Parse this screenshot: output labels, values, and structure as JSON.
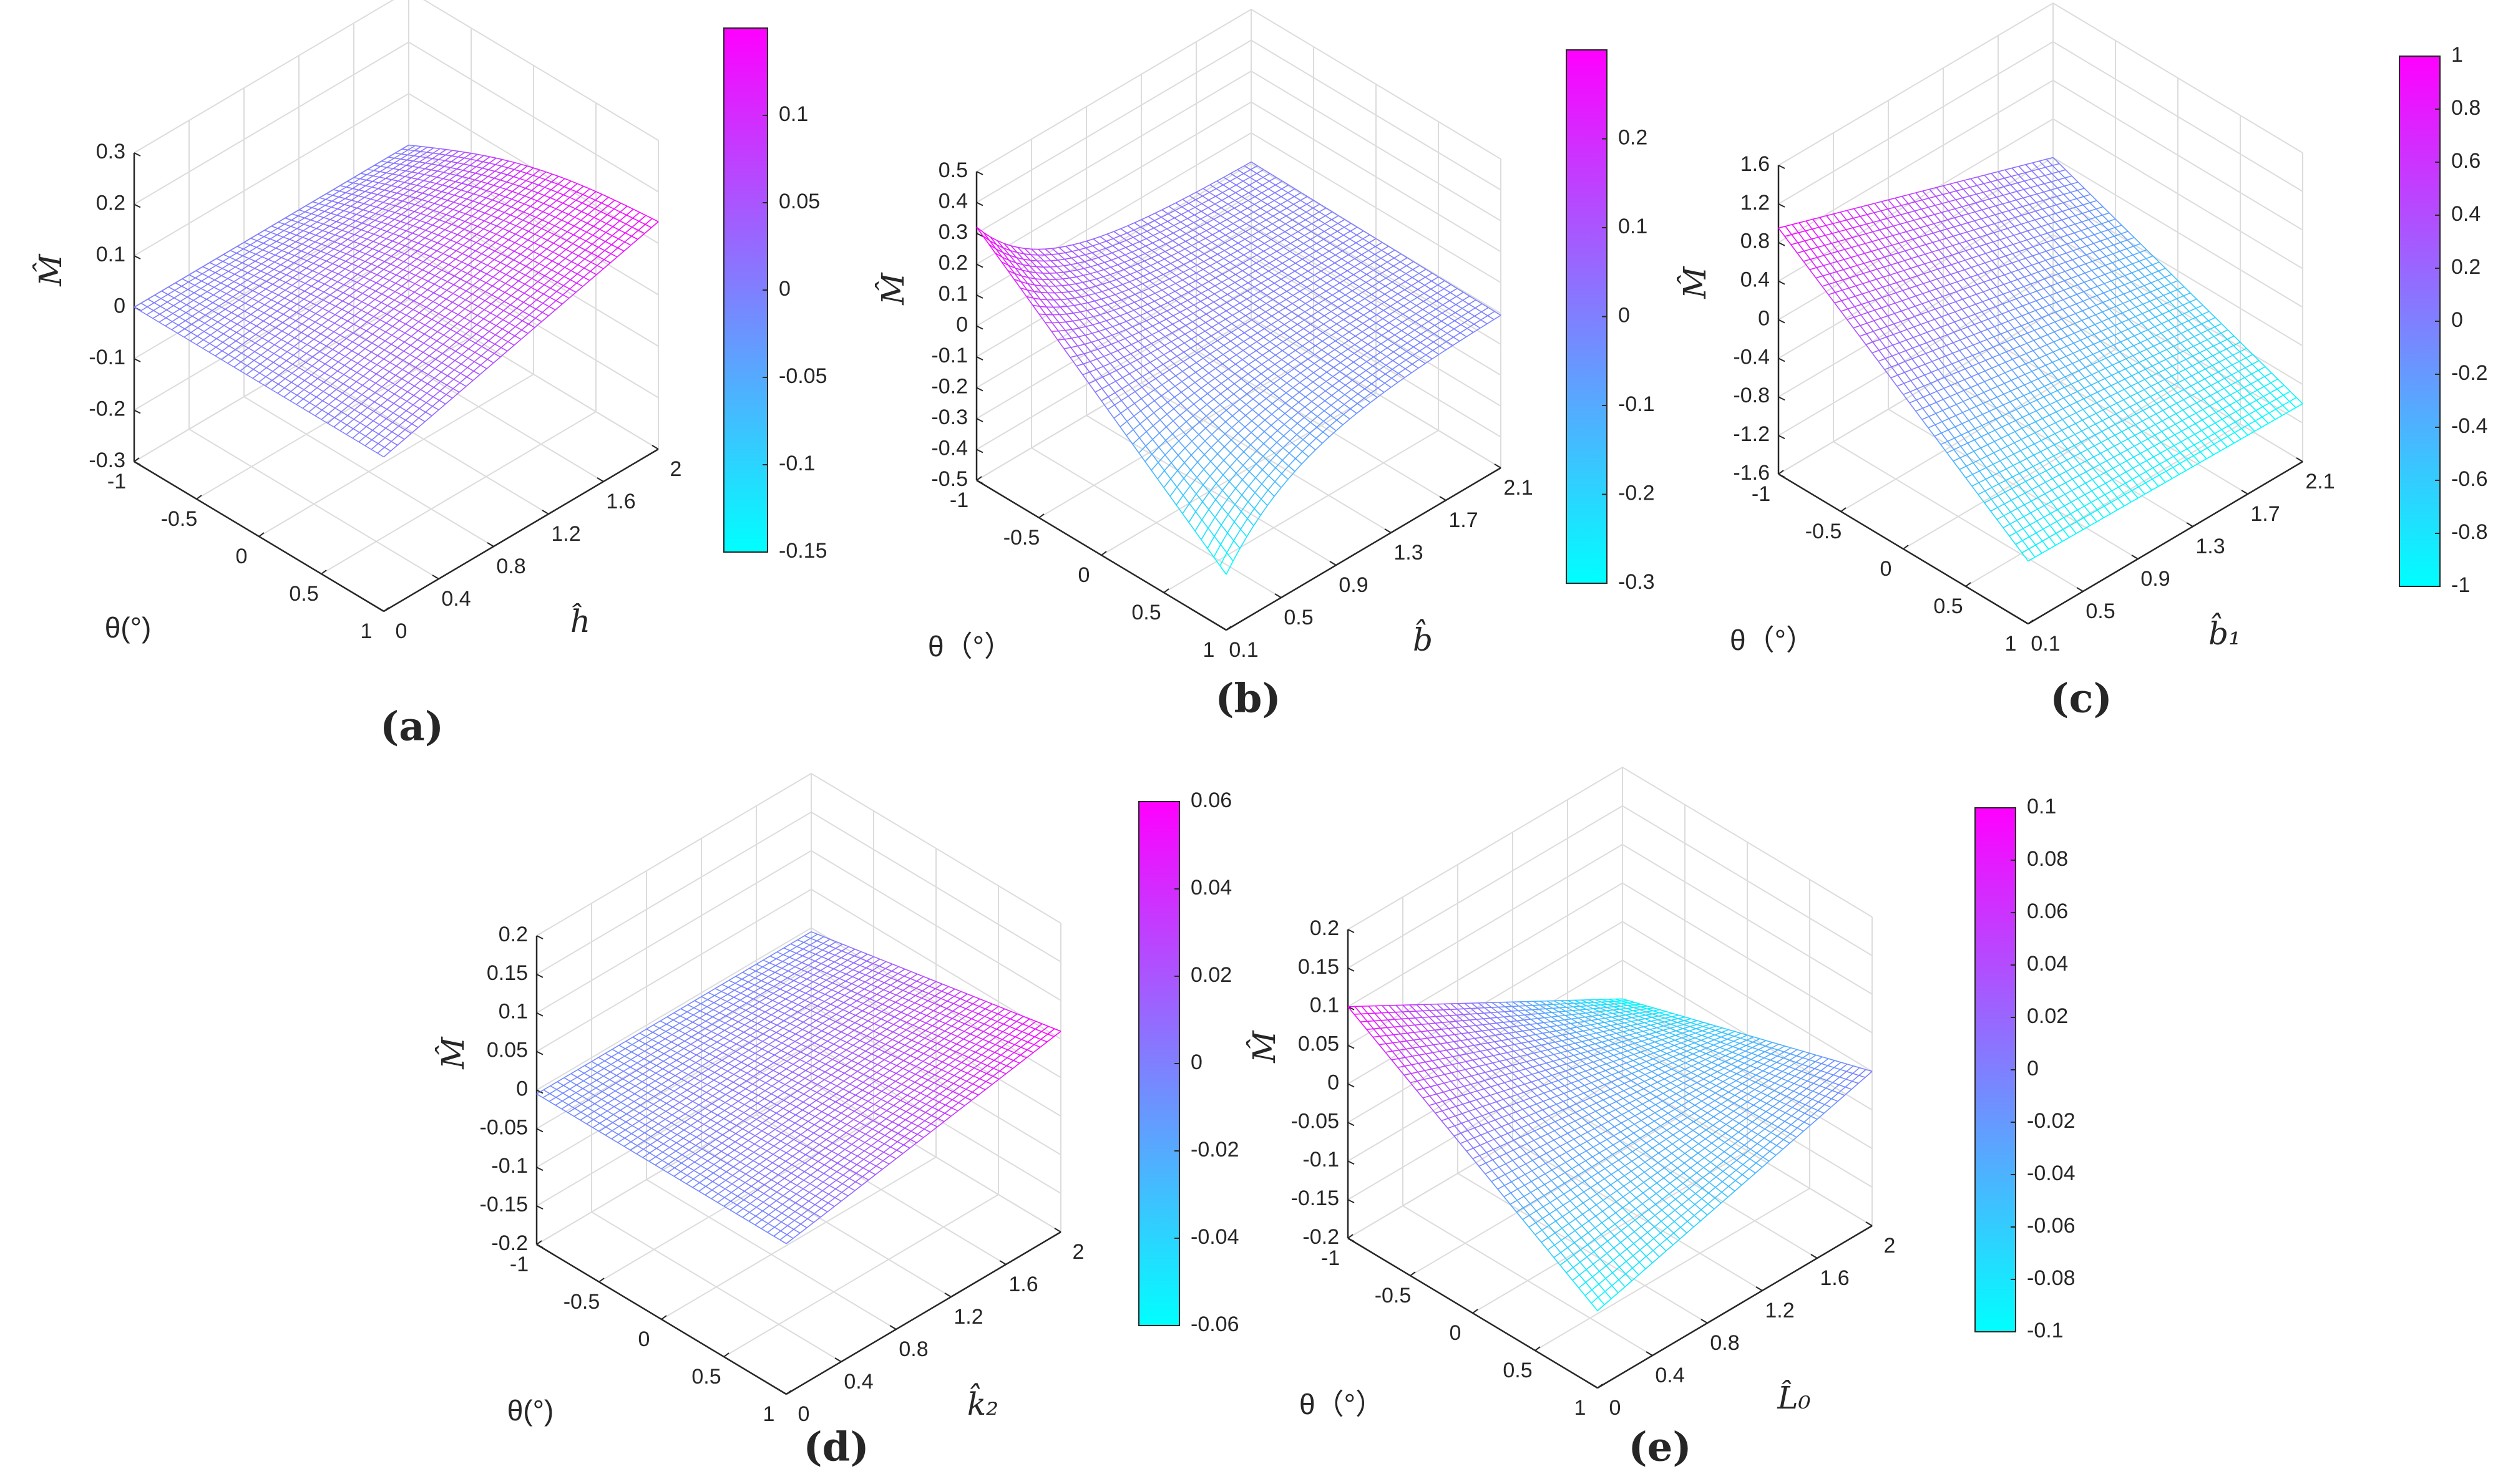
{
  "figure": {
    "panels": [
      "a",
      "b",
      "c",
      "d",
      "e"
    ]
  },
  "chart_data": [
    {
      "id": "a",
      "type": "surface",
      "label": "(a)",
      "xlabel": "θ(°)",
      "ylabel": "ĥ",
      "ylabel_main": "h",
      "zlabel": "M̂",
      "x_range": [
        -1,
        1
      ],
      "x_ticks": [
        "-1",
        "-0.5",
        "0",
        "0.5",
        "1"
      ],
      "y_range": [
        0,
        2
      ],
      "y_ticks": [
        "0",
        "0.4",
        "0.8",
        "1.2",
        "1.6",
        "2"
      ],
      "y_tick_values": [
        0,
        0.4,
        0.8,
        1.2,
        1.6,
        2
      ],
      "z_range": [
        -0.3,
        0.3
      ],
      "z_ticks": [
        "-0.3",
        "-0.2",
        "-0.1",
        "0",
        "0.1",
        "0.2",
        "0.3"
      ],
      "z_tick_values": [
        -0.3,
        -0.2,
        -0.1,
        0,
        0.1,
        0.2,
        0.3
      ],
      "corners": {
        "theta_min_y_min": 0,
        "theta_max_y_min": 0,
        "theta_min_y_max": 0.0,
        "theta_max_y_max": 0.142
      },
      "curvature": 0.03,
      "colorbar": {
        "range": [
          -0.15,
          0.15
        ],
        "ticks": [
          "-0.15",
          "-0.1",
          "-0.05",
          "0",
          "0.05",
          "0.1"
        ],
        "tick_values": [
          -0.15,
          -0.1,
          -0.05,
          0,
          0.05,
          0.1
        ],
        "low_color": "#00ffff",
        "high_color": "#ff00ff"
      }
    },
    {
      "id": "b",
      "type": "surface",
      "label": "(b)",
      "xlabel": "θ（°）",
      "ylabel": "b̂",
      "ylabel_main": "b",
      "zlabel": "M̂",
      "x_range": [
        -1,
        1
      ],
      "x_ticks": [
        "-1",
        "-0.5",
        "0",
        "0.5",
        "1"
      ],
      "y_range": [
        0.1,
        2.1
      ],
      "y_ticks": [
        "0.1",
        "0.5",
        "0.9",
        "1.3",
        "1.7",
        "2.1"
      ],
      "y_tick_values": [
        0.1,
        0.5,
        0.9,
        1.3,
        1.7,
        2.1
      ],
      "z_range": [
        -0.5,
        0.5
      ],
      "z_ticks": [
        "-0.5",
        "-0.4",
        "-0.3",
        "-0.2",
        "-0.1",
        "0",
        "0.1",
        "0.2",
        "0.3",
        "0.4",
        "0.5"
      ],
      "z_tick_values": [
        -0.5,
        -0.4,
        -0.3,
        -0.2,
        -0.1,
        0,
        0.1,
        0.2,
        0.3,
        0.4,
        0.5
      ],
      "corners": {
        "theta_min_y_min": 0.32,
        "theta_max_y_min": -0.32,
        "theta_min_y_max": 0.0,
        "theta_max_y_max": 0.0
      },
      "decay": 4,
      "colorbar": {
        "range": [
          -0.3,
          0.3
        ],
        "ticks": [
          "-0.3",
          "-0.2",
          "-0.1",
          "0",
          "0.1",
          "0.2"
        ],
        "tick_values": [
          -0.3,
          -0.2,
          -0.1,
          0,
          0.1,
          0.2
        ],
        "low_color": "#00ffff",
        "high_color": "#ff00ff"
      }
    },
    {
      "id": "c",
      "type": "surface",
      "label": "(c)",
      "xlabel": "θ（°）",
      "ylabel": "b̂₁",
      "ylabel_main": "b",
      "ylabel_sub": "1",
      "zlabel": "M̂",
      "x_range": [
        -1,
        1
      ],
      "x_ticks": [
        "-1",
        "-0.5",
        "0",
        "0.5",
        "1"
      ],
      "y_range": [
        0.1,
        2.1
      ],
      "y_ticks": [
        "0.1",
        "0.5",
        "0.9",
        "1.3",
        "1.7",
        "2.1"
      ],
      "y_tick_values": [
        0.1,
        0.5,
        0.9,
        1.3,
        1.7,
        2.1
      ],
      "z_range": [
        -1.6,
        1.6
      ],
      "z_ticks": [
        "-1.6",
        "-1.2",
        "-0.8",
        "-0.4",
        "0",
        "0.4",
        "0.8",
        "1.2",
        "1.6"
      ],
      "z_tick_values": [
        -1.6,
        -1.2,
        -0.8,
        -0.4,
        0,
        0.4,
        0.8,
        1.2,
        1.6
      ],
      "corners": {
        "theta_min_y_min": 0.95,
        "theta_max_y_min": -0.95,
        "theta_min_y_max": 0.0,
        "theta_max_y_max": -1.0
      },
      "colorbar": {
        "range": [
          -1,
          1
        ],
        "ticks": [
          "-1",
          "-0.8",
          "-0.6",
          "-0.4",
          "-0.2",
          "0",
          "0.2",
          "0.4",
          "0.6",
          "0.8",
          "1"
        ],
        "tick_values": [
          -1,
          -0.8,
          -0.6,
          -0.4,
          -0.2,
          0,
          0.2,
          0.4,
          0.6,
          0.8,
          1
        ],
        "low_color": "#00ffff",
        "high_color": "#ff00ff"
      }
    },
    {
      "id": "d",
      "type": "surface",
      "label": "(d)",
      "xlabel": "θ(°)",
      "ylabel": "k̂₂",
      "ylabel_main": "k",
      "ylabel_sub": "2",
      "zlabel": "M̂",
      "x_range": [
        -1,
        1
      ],
      "x_ticks": [
        "-1",
        "-0.5",
        "0",
        "0.5",
        "1"
      ],
      "y_range": [
        0,
        2
      ],
      "y_ticks": [
        "0",
        "0.4",
        "0.8",
        "1.2",
        "1.6",
        "2"
      ],
      "y_tick_values": [
        0,
        0.4,
        0.8,
        1.2,
        1.6,
        2
      ],
      "z_range": [
        -0.2,
        0.2
      ],
      "z_ticks": [
        "-0.2",
        "-0.15",
        "-0.1",
        "-0.05",
        "0",
        "0.05",
        "0.1",
        "0.15",
        "0.2"
      ],
      "z_tick_values": [
        -0.2,
        -0.15,
        -0.1,
        -0.05,
        0,
        0.05,
        0.1,
        0.15,
        0.2
      ],
      "corners": {
        "theta_min_y_min": -0.005,
        "theta_max_y_min": -0.005,
        "theta_min_y_max": -0.005,
        "theta_max_y_max": 0.06
      },
      "colorbar": {
        "range": [
          -0.06,
          0.06
        ],
        "ticks": [
          "-0.06",
          "-0.04",
          "-0.02",
          "0",
          "0.02",
          "0.04",
          "0.06"
        ],
        "tick_values": [
          -0.06,
          -0.04,
          -0.02,
          0,
          0.02,
          0.04,
          0.06
        ],
        "low_color": "#00ffff",
        "high_color": "#ff00ff"
      }
    },
    {
      "id": "e",
      "type": "surface",
      "label": "(e)",
      "xlabel": "θ（°）",
      "ylabel": "L̂₀",
      "ylabel_main": "L",
      "ylabel_sub": "0",
      "zlabel": "M̂",
      "x_range": [
        -1,
        1
      ],
      "x_ticks": [
        "-1",
        "-0.5",
        "0",
        "0.5",
        "1"
      ],
      "y_range": [
        0,
        2
      ],
      "y_ticks": [
        "0",
        "0.4",
        "0.8",
        "1.2",
        "1.6",
        "2"
      ],
      "y_tick_values": [
        0,
        0.4,
        0.8,
        1.2,
        1.6,
        2
      ],
      "z_range": [
        -0.2,
        0.2
      ],
      "z_ticks": [
        "-0.2",
        "-0.15",
        "-0.1",
        "-0.05",
        "0",
        "0.05",
        "0.1",
        "0.15",
        "0.2"
      ],
      "z_tick_values": [
        -0.2,
        -0.15,
        -0.1,
        -0.05,
        0,
        0.05,
        0.1,
        0.15,
        0.2
      ],
      "corners": {
        "theta_min_y_min": 0.1,
        "theta_max_y_min": -0.1,
        "theta_min_y_max": -0.1,
        "theta_max_y_max": 0.0
      },
      "colorbar": {
        "range": [
          -0.1,
          0.1
        ],
        "ticks": [
          "-0.1",
          "-0.08",
          "-0.06",
          "-0.04",
          "-0.02",
          "0",
          "0.02",
          "0.04",
          "0.06",
          "0.08",
          "0.1"
        ],
        "tick_values": [
          -0.1,
          -0.08,
          -0.06,
          -0.04,
          -0.02,
          0,
          0.02,
          0.04,
          0.06,
          0.08,
          0.1
        ],
        "low_color": "#00ffff",
        "high_color": "#ff00ff"
      }
    }
  ]
}
